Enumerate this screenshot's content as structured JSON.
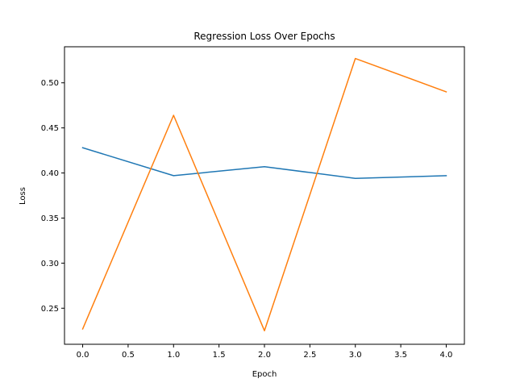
{
  "chart_data": {
    "type": "line",
    "title": "Regression Loss Over Epochs",
    "xlabel": "Epoch",
    "ylabel": "Loss",
    "x": [
      0,
      1,
      2,
      3,
      4
    ],
    "xlim": [
      -0.2,
      4.2
    ],
    "ylim": [
      0.21,
      0.54
    ],
    "xticks": [
      0.0,
      0.5,
      1.0,
      1.5,
      2.0,
      2.5,
      3.0,
      3.5,
      4.0
    ],
    "xtick_labels": [
      "0.0",
      "0.5",
      "1.0",
      "1.5",
      "2.0",
      "2.5",
      "3.0",
      "3.5",
      "4.0"
    ],
    "yticks": [
      0.25,
      0.3,
      0.35,
      0.4,
      0.45,
      0.5
    ],
    "ytick_labels": [
      "0.25",
      "0.30",
      "0.35",
      "0.40",
      "0.45",
      "0.50"
    ],
    "grid": false,
    "series": [
      {
        "values": [
          0.428,
          0.397,
          0.407,
          0.394,
          0.397
        ],
        "color": "#1f77b4"
      },
      {
        "values": [
          0.227,
          0.464,
          0.225,
          0.527,
          0.49
        ],
        "color": "#ff7f0e"
      }
    ]
  }
}
